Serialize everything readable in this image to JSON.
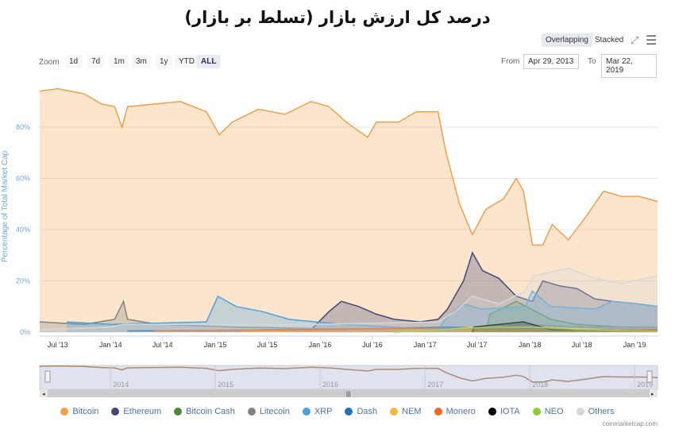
{
  "title": "درصد کل ارزش بازار (تسلط بر بازار)",
  "toolbar": {
    "overlapping": "Overlapping",
    "stacked": "Stacked",
    "fullscreen_icon": "fullscreen-icon",
    "menu_icon": "hamburger-menu-icon"
  },
  "zoom": {
    "label": "Zoom",
    "buttons": [
      "1d",
      "7d",
      "1m",
      "3m",
      "1y",
      "YTD",
      "ALL"
    ],
    "selected": "ALL"
  },
  "range": {
    "from_label": "From",
    "from": "Apr 29, 2013",
    "to_label": "To",
    "to": "Mar 22, 2019"
  },
  "credit": "coinmarketcap.com",
  "chart_data": {
    "type": "area",
    "title": "درصد کل ارزش بازار (تسلط بر بازار)",
    "ylabel": "Percentage of Total Market Cap",
    "xlabel": "",
    "xlim": [
      "2013-04-29",
      "2019-03-22"
    ],
    "ylim": [
      0,
      100
    ],
    "yticks": [
      "0%",
      "20%",
      "40%",
      "60%",
      "80%"
    ],
    "ytick_values": [
      0,
      20,
      40,
      60,
      80
    ],
    "xticks": [
      [
        "2013-07-01",
        "Jul '13"
      ],
      [
        "2014-01-01",
        "Jan '14"
      ],
      [
        "2014-07-01",
        "Jul '14"
      ],
      [
        "2015-01-01",
        "Jan '15"
      ],
      [
        "2015-07-01",
        "Jul '15"
      ],
      [
        "2016-01-01",
        "Jan '16"
      ],
      [
        "2016-07-01",
        "Jul '16"
      ],
      [
        "2017-01-01",
        "Jan '17"
      ],
      [
        "2017-07-01",
        "Jul '17"
      ],
      [
        "2018-01-01",
        "Jan '18"
      ],
      [
        "2018-07-01",
        "Jul '18"
      ],
      [
        "2019-01-01",
        "Jan '19"
      ]
    ],
    "navigator_ticks": [
      [
        "2014-01-01",
        "2014"
      ],
      [
        "2015-01-01",
        "2015"
      ],
      [
        "2016-01-01",
        "2016"
      ],
      [
        "2017-01-01",
        "2017"
      ],
      [
        "2018-01-01",
        "2018"
      ],
      [
        "2019-01-01",
        "2019"
      ]
    ],
    "grid": true,
    "legend_position": "bottom",
    "mode": "Overlapping",
    "series": [
      {
        "name": "Bitcoin",
        "color": "#f0a04b",
        "data": [
          [
            "2013-04-29",
            94
          ],
          [
            "2013-07-01",
            95
          ],
          [
            "2013-10-01",
            93
          ],
          [
            "2013-12-01",
            89
          ],
          [
            "2014-01-15",
            88
          ],
          [
            "2014-02-10",
            80
          ],
          [
            "2014-03-01",
            88
          ],
          [
            "2014-06-01",
            89
          ],
          [
            "2014-09-01",
            90
          ],
          [
            "2014-12-01",
            86
          ],
          [
            "2015-01-15",
            77
          ],
          [
            "2015-03-01",
            82
          ],
          [
            "2015-06-01",
            87
          ],
          [
            "2015-09-01",
            85
          ],
          [
            "2015-12-01",
            90
          ],
          [
            "2016-02-01",
            88
          ],
          [
            "2016-04-01",
            82
          ],
          [
            "2016-06-15",
            76
          ],
          [
            "2016-07-15",
            82
          ],
          [
            "2016-10-01",
            82
          ],
          [
            "2016-12-01",
            86
          ],
          [
            "2017-02-15",
            86
          ],
          [
            "2017-03-15",
            70
          ],
          [
            "2017-05-01",
            50
          ],
          [
            "2017-06-15",
            38
          ],
          [
            "2017-08-01",
            48
          ],
          [
            "2017-10-01",
            52
          ],
          [
            "2017-11-15",
            60
          ],
          [
            "2017-12-10",
            55
          ],
          [
            "2018-01-10",
            34
          ],
          [
            "2018-02-15",
            34
          ],
          [
            "2018-03-20",
            42
          ],
          [
            "2018-05-15",
            36
          ],
          [
            "2018-07-15",
            45
          ],
          [
            "2018-09-15",
            55
          ],
          [
            "2018-11-15",
            53
          ],
          [
            "2019-01-15",
            53
          ],
          [
            "2019-03-22",
            51
          ]
        ]
      },
      {
        "name": "Ethereum",
        "color": "#434877",
        "data": [
          [
            "2015-08-07",
            0.5
          ],
          [
            "2015-12-01",
            1
          ],
          [
            "2016-02-01",
            8
          ],
          [
            "2016-03-15",
            12
          ],
          [
            "2016-05-15",
            10
          ],
          [
            "2016-07-15",
            7
          ],
          [
            "2016-09-15",
            5
          ],
          [
            "2016-12-15",
            4
          ],
          [
            "2017-02-15",
            5
          ],
          [
            "2017-03-20",
            9
          ],
          [
            "2017-05-15",
            20
          ],
          [
            "2017-06-15",
            31
          ],
          [
            "2017-07-20",
            24
          ],
          [
            "2017-09-15",
            21
          ],
          [
            "2017-11-15",
            14
          ],
          [
            "2018-01-10",
            12
          ],
          [
            "2018-02-15",
            20
          ],
          [
            "2018-04-15",
            18
          ],
          [
            "2018-06-15",
            17
          ],
          [
            "2018-08-15",
            13
          ],
          [
            "2018-10-15",
            12
          ],
          [
            "2019-01-15",
            11
          ],
          [
            "2019-03-22",
            10
          ]
        ]
      },
      {
        "name": "Bitcoin Cash",
        "color": "#4b8b3b",
        "data": [
          [
            "2017-08-01",
            0
          ],
          [
            "2017-08-15",
            7
          ],
          [
            "2017-11-15",
            12
          ],
          [
            "2017-12-20",
            10
          ],
          [
            "2018-03-15",
            5
          ],
          [
            "2018-06-15",
            3
          ],
          [
            "2018-11-15",
            2
          ],
          [
            "2019-03-22",
            2
          ]
        ]
      },
      {
        "name": "Litecoin",
        "color": "#838383",
        "data": [
          [
            "2013-04-29",
            4
          ],
          [
            "2013-10-01",
            3
          ],
          [
            "2014-01-15",
            5
          ],
          [
            "2014-02-15",
            12
          ],
          [
            "2014-03-01",
            5
          ],
          [
            "2014-06-15",
            3
          ],
          [
            "2015-03-15",
            2
          ],
          [
            "2016-06-15",
            1
          ],
          [
            "2017-06-15",
            1.5
          ],
          [
            "2017-09-15",
            2
          ],
          [
            "2017-12-15",
            3
          ],
          [
            "2018-06-15",
            2
          ],
          [
            "2019-03-22",
            2
          ]
        ]
      },
      {
        "name": "XRP",
        "color": "#48a3e0",
        "data": [
          [
            "2013-08-01",
            4
          ],
          [
            "2014-01-01",
            3
          ],
          [
            "2014-12-01",
            4
          ],
          [
            "2015-01-10",
            14
          ],
          [
            "2015-03-15",
            10
          ],
          [
            "2015-06-15",
            8
          ],
          [
            "2015-09-15",
            5
          ],
          [
            "2016-03-15",
            3
          ],
          [
            "2017-02-15",
            1
          ],
          [
            "2017-03-20",
            6
          ],
          [
            "2017-05-15",
            11
          ],
          [
            "2017-07-15",
            9
          ],
          [
            "2017-12-15",
            10
          ],
          [
            "2018-01-10",
            16
          ],
          [
            "2018-03-15",
            10
          ],
          [
            "2018-08-15",
            9
          ],
          [
            "2018-10-15",
            12
          ],
          [
            "2019-01-15",
            11
          ],
          [
            "2019-03-22",
            10
          ]
        ]
      },
      {
        "name": "Dash",
        "color": "#1e75bc",
        "data": [
          [
            "2014-03-01",
            0.5
          ],
          [
            "2016-03-15",
            1
          ],
          [
            "2017-03-15",
            2
          ],
          [
            "2017-12-15",
            1.5
          ],
          [
            "2019-03-22",
            0.5
          ]
        ]
      },
      {
        "name": "NEM",
        "color": "#f6b93b",
        "data": [
          [
            "2015-04-01",
            0.2
          ],
          [
            "2017-03-15",
            1
          ],
          [
            "2017-06-15",
            2
          ],
          [
            "2018-01-10",
            2
          ],
          [
            "2019-03-22",
            0.3
          ]
        ]
      },
      {
        "name": "Monero",
        "color": "#f26822",
        "data": [
          [
            "2014-06-01",
            0.5
          ],
          [
            "2016-09-15",
            1.5
          ],
          [
            "2017-06-15",
            1
          ],
          [
            "2018-06-15",
            1
          ],
          [
            "2019-03-22",
            1
          ]
        ]
      },
      {
        "name": "IOTA",
        "color": "#000000",
        "data": [
          [
            "2017-06-15",
            0
          ],
          [
            "2017-06-20",
            2
          ],
          [
            "2017-12-10",
            4
          ],
          [
            "2018-03-15",
            1
          ],
          [
            "2019-03-22",
            0.5
          ]
        ]
      },
      {
        "name": "NEO",
        "color": "#8ece34",
        "data": [
          [
            "2016-09-15",
            0
          ],
          [
            "2017-08-15",
            2
          ],
          [
            "2018-01-15",
            2
          ],
          [
            "2018-06-15",
            1
          ],
          [
            "2019-03-22",
            0.4
          ]
        ]
      },
      {
        "name": "Others",
        "color": "#d8d8d8",
        "data": [
          [
            "2013-04-29",
            1
          ],
          [
            "2014-01-01",
            2
          ],
          [
            "2014-02-15",
            3
          ],
          [
            "2015-01-01",
            3
          ],
          [
            "2016-01-01",
            3
          ],
          [
            "2017-02-15",
            4
          ],
          [
            "2017-04-15",
            8
          ],
          [
            "2017-06-15",
            14
          ],
          [
            "2017-09-15",
            11
          ],
          [
            "2017-12-15",
            16
          ],
          [
            "2018-01-15",
            22
          ],
          [
            "2018-05-15",
            25
          ],
          [
            "2018-08-15",
            21
          ],
          [
            "2018-11-15",
            19
          ],
          [
            "2019-03-22",
            22
          ]
        ]
      }
    ]
  }
}
